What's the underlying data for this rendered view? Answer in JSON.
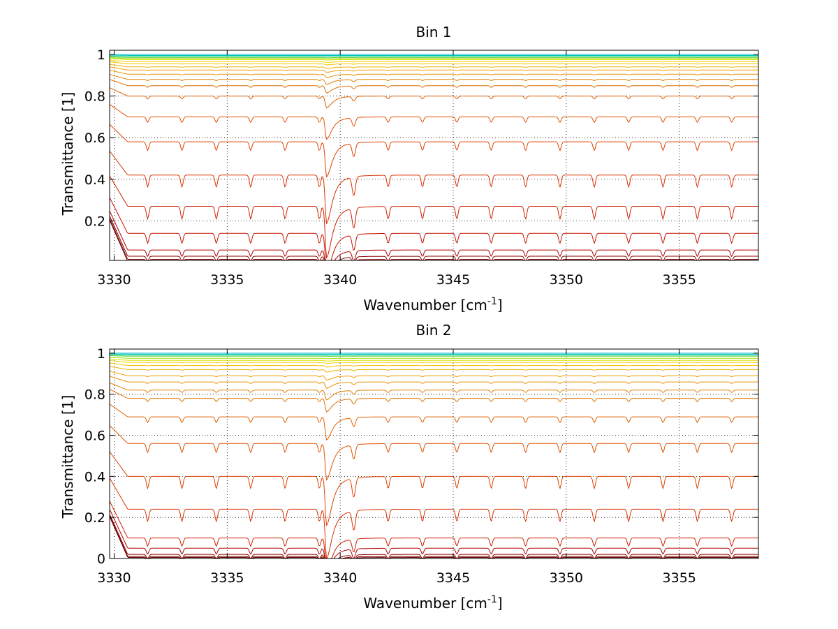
{
  "chart_data": [
    {
      "type": "line",
      "title": "Bin 1",
      "xlabel": "Wavenumber [cm",
      "xlabel_sup": "-1",
      "xlabel_end": "]",
      "ylabel": "Transmittance [1]",
      "xlim": [
        3329.8,
        3358.5
      ],
      "ylim": [
        0.01,
        1.02
      ],
      "xticks": [
        3330,
        3335,
        3340,
        3345,
        3350,
        3355
      ],
      "xtick_labels": [
        "3330",
        "3335",
        "3340",
        "3345",
        "3350",
        "3355"
      ],
      "yticks": [
        0.2,
        0.4,
        0.6,
        0.8,
        1.0
      ],
      "ytick_labels": [
        "0.2",
        "0.4",
        "0.6",
        "0.8",
        "1"
      ],
      "grid": true,
      "series_count": 30,
      "strong_line_center": 3339.4,
      "secondary_line_center": 3340.6,
      "line_spacing": 1.52,
      "baseline_levels": [
        1.0,
        0.995,
        0.99,
        0.985,
        0.98,
        0.975,
        0.965,
        0.955,
        0.94,
        0.925,
        0.905,
        0.88,
        0.85,
        0.8,
        0.7,
        0.58,
        0.42,
        0.27,
        0.14,
        0.06,
        0.03,
        0.015,
        0.005
      ],
      "colors": [
        "#00b8e0",
        "#00c8b0",
        "#20d090",
        "#60d840",
        "#a0e000",
        "#d8e000",
        "#f0d000",
        "#f8c000",
        "#f0b000",
        "#f0a000",
        "#e89000",
        "#e08000",
        "#e07000",
        "#e06000",
        "#e05000",
        "#e04000",
        "#d83000",
        "#d02000",
        "#c81000",
        "#b00000",
        "#900000",
        "#800000",
        "#600000"
      ]
    },
    {
      "type": "line",
      "title": "Bin 2",
      "xlabel": "Wavenumber [cm",
      "xlabel_sup": "-1",
      "xlabel_end": "]",
      "ylabel": "Transmittance [1]",
      "xlim": [
        3329.8,
        3358.5
      ],
      "ylim": [
        0.0,
        1.02
      ],
      "xticks": [
        3330,
        3335,
        3340,
        3345,
        3350,
        3355
      ],
      "xtick_labels": [
        "3330",
        "3335",
        "3340",
        "3345",
        "3350",
        "3355"
      ],
      "yticks": [
        0.0,
        0.2,
        0.4,
        0.6,
        0.8,
        1.0
      ],
      "ytick_labels": [
        "0",
        "0.2",
        "0.4",
        "0.6",
        "0.8",
        "1"
      ],
      "grid": true,
      "series_count": 30,
      "strong_line_center": 3339.4,
      "secondary_line_center": 3340.6,
      "line_spacing": 1.52,
      "baseline_levels": [
        1.0,
        0.995,
        0.99,
        0.985,
        0.975,
        0.965,
        0.955,
        0.94,
        0.92,
        0.89,
        0.86,
        0.82,
        0.78,
        0.69,
        0.56,
        0.4,
        0.24,
        0.1,
        0.05,
        0.02,
        0.01,
        0.005
      ],
      "colors": [
        "#00b8e0",
        "#00c8b0",
        "#20d090",
        "#60d840",
        "#a0e000",
        "#d8e000",
        "#f0d000",
        "#f8c000",
        "#f0b000",
        "#f0a000",
        "#e89000",
        "#e08000",
        "#e07000",
        "#e06000",
        "#e05000",
        "#e04000",
        "#d83000",
        "#d02000",
        "#b00000",
        "#900000",
        "#800000",
        "#600000"
      ]
    }
  ]
}
